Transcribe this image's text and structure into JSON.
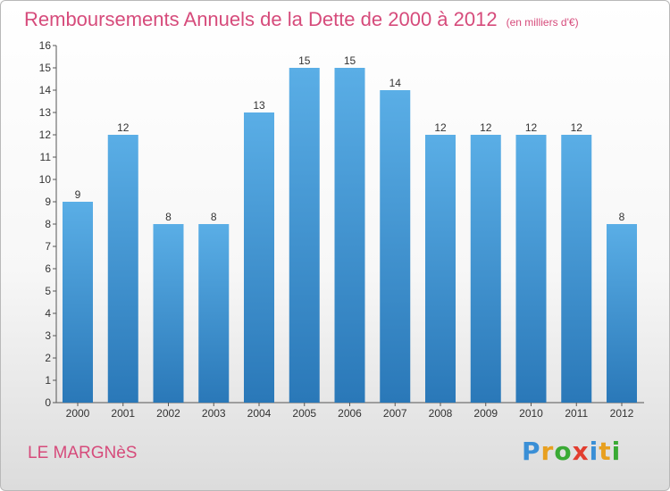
{
  "header": {
    "title": "Remboursements Annuels de la Dette de 2000 à 2012",
    "unit": "(en milliers d'€)"
  },
  "footer": {
    "commune": "LE MARGNèS",
    "brand": "Proxiti",
    "brand_letters": [
      {
        "char": "P",
        "color": "#3a8fd6"
      },
      {
        "char": "r",
        "color": "#e8a020"
      },
      {
        "char": "o",
        "color": "#3aaa35"
      },
      {
        "char": "x",
        "color": "#e23d2f"
      },
      {
        "char": "i",
        "color": "#3a8fd6"
      },
      {
        "char": "t",
        "color": "#e8a020"
      },
      {
        "char": "i",
        "color": "#3aaa35"
      }
    ]
  },
  "colors": {
    "accent": "#d64b7b",
    "bar_top": "#5aaee6",
    "bar_bottom": "#2a78b8"
  },
  "chart_data": {
    "type": "bar",
    "title": "Remboursements Annuels de la Dette de 2000 à 2012",
    "categories": [
      "2000",
      "2001",
      "2002",
      "2003",
      "2004",
      "2005",
      "2006",
      "2007",
      "2008",
      "2009",
      "2010",
      "2011",
      "2012"
    ],
    "values": [
      9,
      12,
      8,
      8,
      13,
      15,
      15,
      14,
      12,
      12,
      12,
      12,
      8
    ],
    "yticks": [
      "0",
      "1",
      "2",
      "3",
      "4",
      "5",
      "6",
      "7",
      "8",
      "9",
      "10",
      "11",
      "12",
      "13",
      "14",
      "15",
      "16"
    ],
    "ylim": [
      0,
      16
    ],
    "grid": false,
    "data_labels": true
  }
}
